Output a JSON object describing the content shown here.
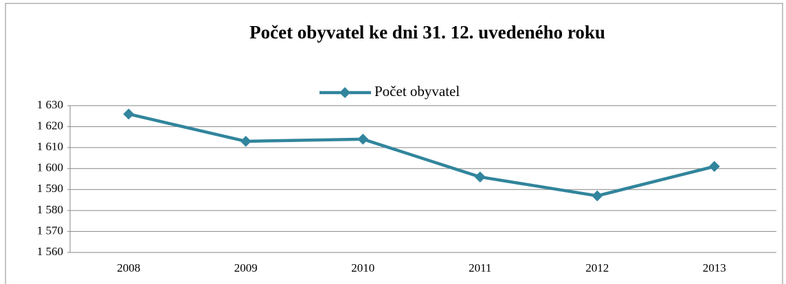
{
  "chart_data": {
    "type": "line",
    "title": "Počet obyvatel ke dni 31. 12. uvedeného roku",
    "categories": [
      "2008",
      "2009",
      "2010",
      "2011",
      "2012",
      "2013"
    ],
    "series": [
      {
        "name": "Počet obyvatel",
        "color": "#31859c",
        "values": [
          1626,
          1613,
          1614,
          1596,
          1587,
          1601
        ]
      }
    ],
    "ylim": [
      1560,
      1630
    ],
    "yticks": [
      {
        "value": 1560,
        "label": "1 560"
      },
      {
        "value": 1570,
        "label": "1 570"
      },
      {
        "value": 1580,
        "label": "1 580"
      },
      {
        "value": 1590,
        "label": "1 590"
      },
      {
        "value": 1600,
        "label": "1 600"
      },
      {
        "value": 1610,
        "label": "1 610"
      },
      {
        "value": 1620,
        "label": "1 620"
      },
      {
        "value": 1630,
        "label": "1 630"
      }
    ],
    "grid": true,
    "legend": "top"
  }
}
